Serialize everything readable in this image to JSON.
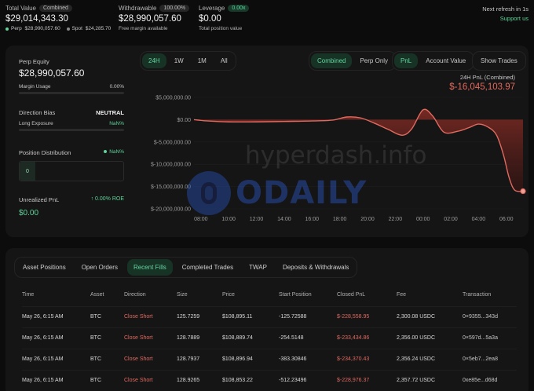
{
  "header": {
    "total_value_label": "Total Value",
    "total_value_chip": "Combined",
    "total_value": "$29,014,343.30",
    "perp_label": "Perp",
    "perp_value": "$28,990,057.60",
    "spot_label": "Spot",
    "spot_value": "$24,285.70",
    "withdrawable_label": "Withdrawable",
    "withdrawable_chip": "100.00%",
    "withdrawable_value": "$28,990,057.60",
    "withdrawable_sub": "Free margin available",
    "leverage_label": "Leverage",
    "leverage_chip": "0.00x",
    "leverage_value": "$0.00",
    "leverage_sub": "Total position value",
    "refresh": "Next refresh in 1s",
    "support": "Support us"
  },
  "left_panel": {
    "perp_equity_label": "Perp Equity",
    "perp_equity": "$28,990,057.60",
    "margin_usage_label": "Margin Usage",
    "margin_usage": "0.00%",
    "direction_bias_label": "Direction Bias",
    "direction_bias": "NEUTRAL",
    "long_exposure_label": "Long Exposure",
    "long_exposure": "NaN%",
    "position_distribution_label": "Position Distribution",
    "position_distribution_value": "NaN%",
    "distribution_box": "0",
    "unrealized_pnl_label": "Unrealized PnL",
    "unrealized_roe": "0.00% ROE",
    "unrealized_pnl": "$0.00"
  },
  "chart_controls": {
    "timeframes": [
      "24H",
      "1W",
      "1M",
      "All"
    ],
    "scope": [
      "Combined",
      "Perp Only"
    ],
    "metric": [
      "PnL",
      "Account Value"
    ],
    "show_trades": "Show Trades"
  },
  "chart_data": {
    "type": "area",
    "title": "24H PnL (Combined)",
    "current_value": "$-16,045,103.97",
    "y_ticks": [
      "$5,000,000.00",
      "$0.00",
      "$-5,000,000.00",
      "$-10,000,000.00",
      "$-15,000,000.00",
      "$-20,000,000.00"
    ],
    "x_ticks": [
      "08:00",
      "10:00",
      "12:00",
      "14:00",
      "16:00",
      "18:00",
      "20:00",
      "22:00",
      "00:00",
      "02:00",
      "04:00",
      "06:00"
    ],
    "ylim": [
      -20000000,
      5000000
    ],
    "xlim": [
      7.5,
      31.2
    ],
    "x": [
      7.5,
      8.5,
      10,
      12,
      14,
      16,
      17.5,
      18.5,
      19.5,
      20.5,
      21.5,
      22.5,
      23.2,
      24,
      24.7,
      25.5,
      26.5,
      27.3,
      28,
      28.7,
      29.3,
      29.8,
      30.2,
      30.6,
      31.2
    ],
    "y": [
      0,
      -300000,
      -500000,
      -500000,
      -400000,
      -300000,
      -100000,
      600000,
      400000,
      -800000,
      -2200000,
      -3500000,
      -2000000,
      2200000,
      800000,
      -2800000,
      -2600000,
      -1800000,
      -1000000,
      -1700000,
      -3500000,
      -8000000,
      -13000000,
      -15800000,
      -16045104
    ]
  },
  "watermarks": {
    "site": "hyperdash.info",
    "brand": "ODAILY"
  },
  "fills": {
    "tabs": [
      "Asset Positions",
      "Open Orders",
      "Recent Fills",
      "Completed Trades",
      "TWAP",
      "Deposits & Withdrawals"
    ],
    "active_tab": "Recent Fills",
    "columns": [
      "Time",
      "Asset",
      "Direction",
      "Size",
      "Price",
      "Start Position",
      "Closed PnL",
      "Fee",
      "Transaction"
    ],
    "rows": [
      [
        "May 26, 6:15 AM",
        "BTC",
        "Close Short",
        "125.7259",
        "$108,895.11",
        "-125.72588",
        "$-228,558.95",
        "2,300.08 USDC",
        "0×9355...343d"
      ],
      [
        "May 26, 6:15 AM",
        "BTC",
        "Close Short",
        "128.7889",
        "$108,889.74",
        "-254.5148",
        "$-233,434.86",
        "2,356.00 USDC",
        "0×597d...5a3a"
      ],
      [
        "May 26, 6:15 AM",
        "BTC",
        "Close Short",
        "128.7937",
        "$108,896.94",
        "-383.30846",
        "$-234,370.43",
        "2,356.24 USDC",
        "0×5eb7...2ea8"
      ],
      [
        "May 26, 6:15 AM",
        "BTC",
        "Close Short",
        "128.9265",
        "$108,853.22",
        "-512.23496",
        "$-228,976.37",
        "2,357.72 USDC",
        "0xe85e...d68d"
      ]
    ]
  },
  "colors": {
    "accent_green": "#5fd39a",
    "pnl_red": "#e06a5f",
    "background": "#0c0c0c"
  }
}
